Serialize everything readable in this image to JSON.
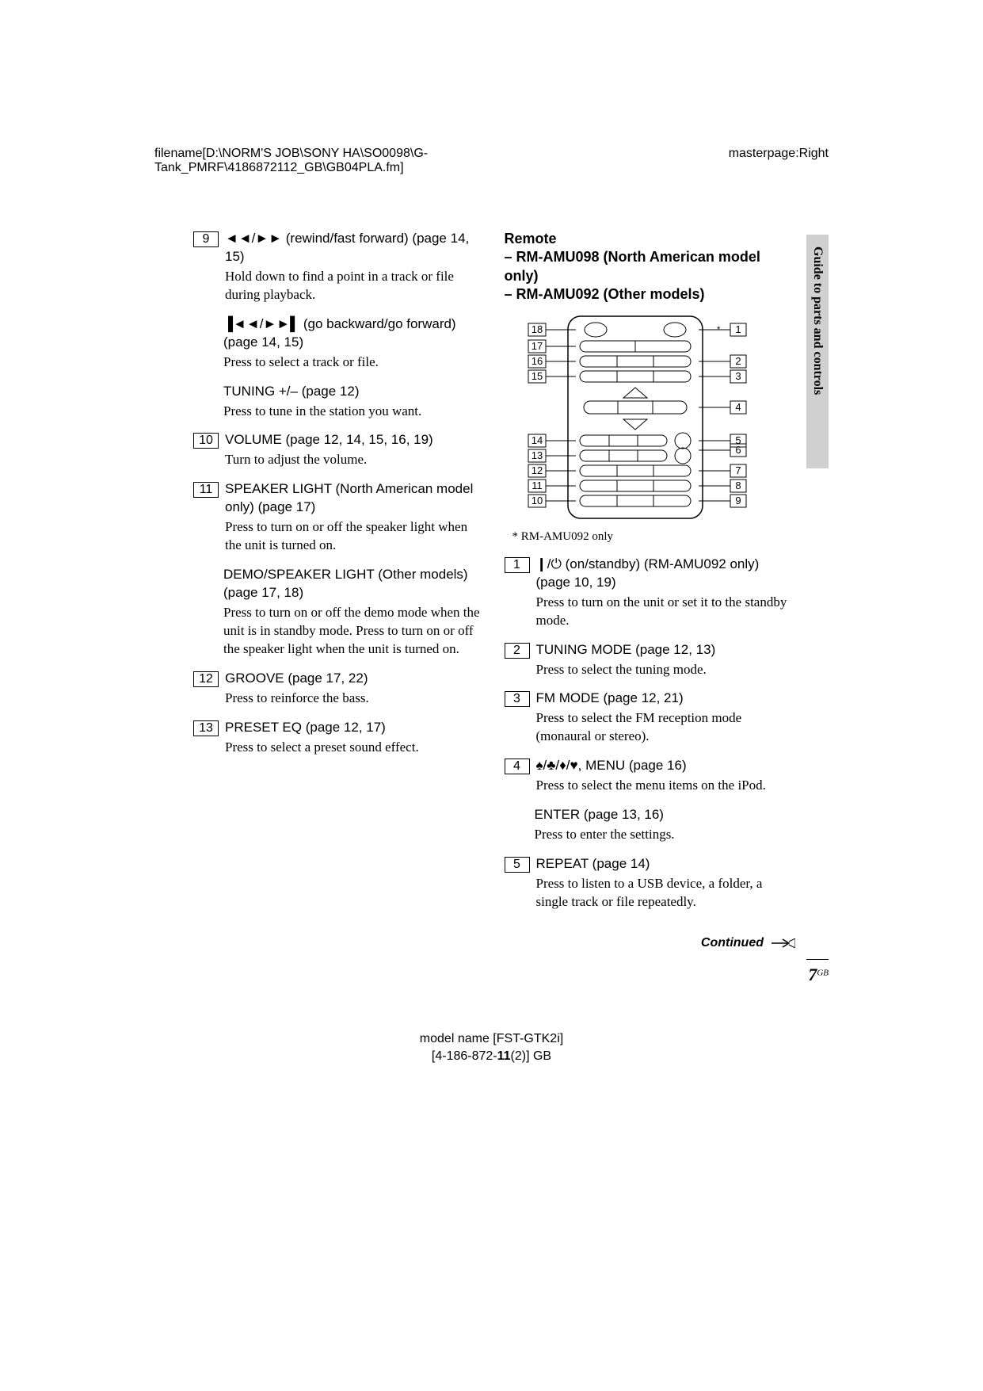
{
  "header": {
    "filename": "filename[D:\\NORM'S JOB\\SONY HA\\SO0098\\G-Tank_PMRF\\4186872112_GB\\GB04PLA.fm]",
    "masterpage": "masterpage:Right"
  },
  "sidebar": {
    "text": "Guide to parts and controls"
  },
  "left_items": [
    {
      "num": "9",
      "title": "◄◄/►► (rewind/fast forward) (page 14, 15)",
      "desc": "Hold down to find a point in a track or file during playback."
    },
    {
      "num": "",
      "title": "▐◄◄/►►▌ (go backward/go forward) (page 14, 15)",
      "desc": "Press to select a track or file."
    },
    {
      "num": "",
      "title": "TUNING +/– (page 12)",
      "desc": "Press to tune in the station you want."
    },
    {
      "num": "10",
      "title": "VOLUME (page 12, 14, 15, 16, 19)",
      "desc": "Turn to adjust the volume."
    },
    {
      "num": "11",
      "title": "SPEAKER LIGHT (North American model only) (page 17)",
      "desc": "Press to turn on or off the speaker light when the unit is turned on."
    },
    {
      "num": "",
      "title": "DEMO/SPEAKER LIGHT (Other models) (page 17, 18)",
      "desc": "Press to turn on or off the demo mode when the unit is in standby mode. Press to turn on or off the speaker light when the unit is turned on."
    },
    {
      "num": "12",
      "title": "GROOVE (page 17, 22)",
      "desc": "Press to reinforce the bass."
    },
    {
      "num": "13",
      "title": "PRESET EQ (page 12, 17)",
      "desc": "Press to select a preset sound effect."
    }
  ],
  "remote_head": {
    "title": "Remote",
    "line1": "– RM-AMU098 (North American model only)",
    "line2": "– RM-AMU092 (Other models)"
  },
  "remote_note": "* RM-AMU092 only",
  "diagram": {
    "left_labels": [
      "18",
      "17",
      "16",
      "15",
      "14",
      "13",
      "12",
      "11",
      "10"
    ],
    "right_labels": [
      "1",
      "2",
      "3",
      "4",
      "5",
      "6",
      "7",
      "8",
      "9"
    ],
    "stroke": "#000000"
  },
  "right_items": [
    {
      "num": "1",
      "title": "❙/⏻ (on/standby) (RM-AMU092 only) (page 10, 19)",
      "desc": "Press to turn on the unit or set it to the standby mode."
    },
    {
      "num": "2",
      "title": "TUNING MODE (page 12, 13)",
      "desc": "Press to select the tuning mode."
    },
    {
      "num": "3",
      "title": "FM MODE (page 12, 21)",
      "desc": "Press to select the FM reception mode (monaural or stereo)."
    },
    {
      "num": "4",
      "title": "♠/♣/♦/♥, MENU (page 16)",
      "desc": "Press to select the menu items on the iPod."
    },
    {
      "num": "",
      "title": "ENTER (page 13, 16)",
      "desc": "Press to enter the settings."
    },
    {
      "num": "5",
      "title": "REPEAT (page 14)",
      "desc": "Press to listen to a USB device, a folder, a single track or file repeatedly."
    }
  ],
  "continued": "Continued",
  "page": {
    "num": "7",
    "region": "GB"
  },
  "footer": {
    "model": "model name [FST-GTK2i]",
    "doc": "[4-186-872-11(2)] GB"
  },
  "colors": {
    "sidebar_bg": "#d0d0d0",
    "text": "#000000",
    "page_bg": "#ffffff"
  }
}
